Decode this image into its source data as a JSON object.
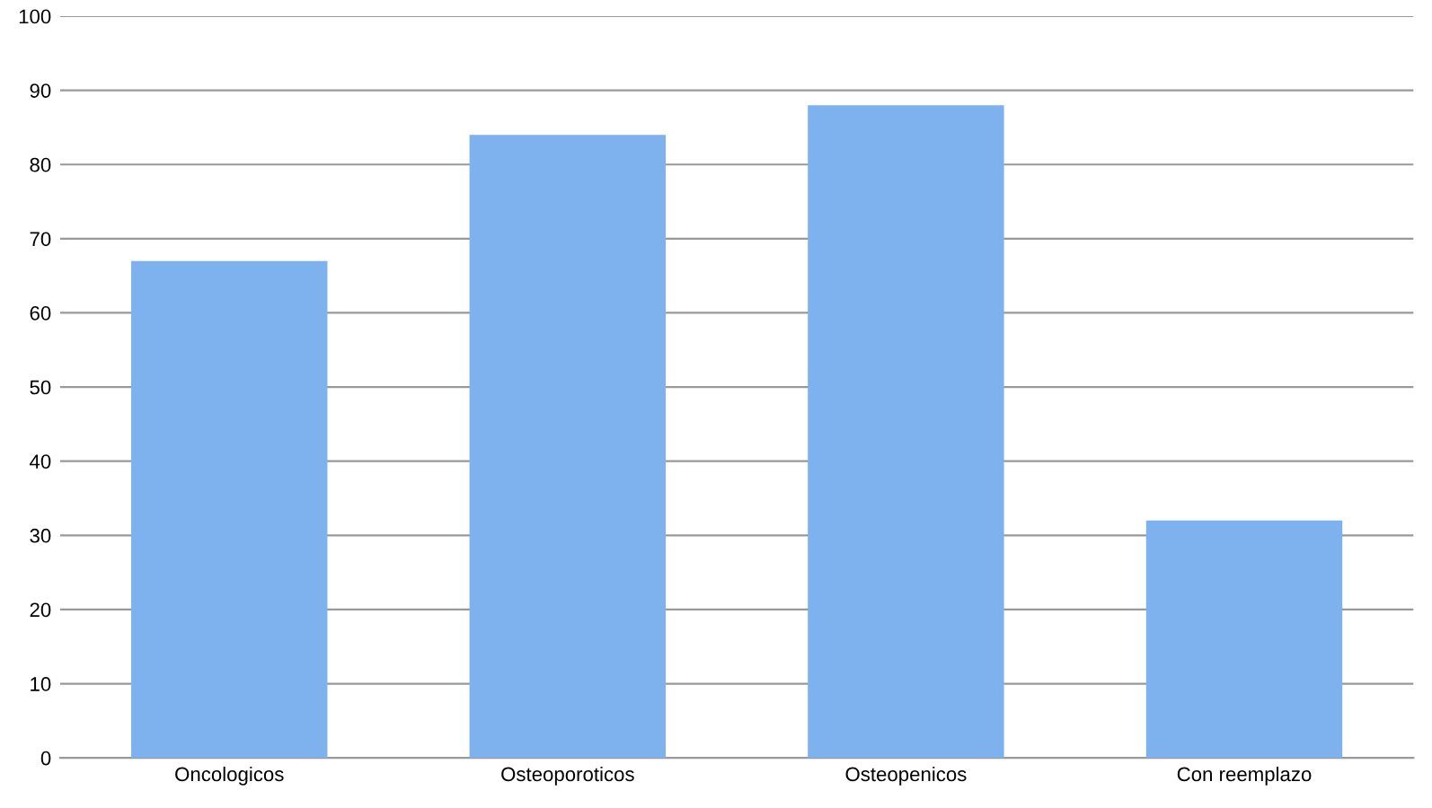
{
  "chart_data": {
    "type": "bar",
    "categories": [
      "Oncologicos",
      "Osteoporoticos",
      "Osteopenicos",
      "Con reemplazo"
    ],
    "values": [
      67,
      84,
      88,
      32
    ],
    "color": "#7eb2ee",
    "ylim": [
      0,
      100
    ],
    "yticks": [
      0,
      10,
      20,
      30,
      40,
      50,
      60,
      70,
      80,
      90,
      100
    ],
    "grid": "y",
    "legend": false
  }
}
